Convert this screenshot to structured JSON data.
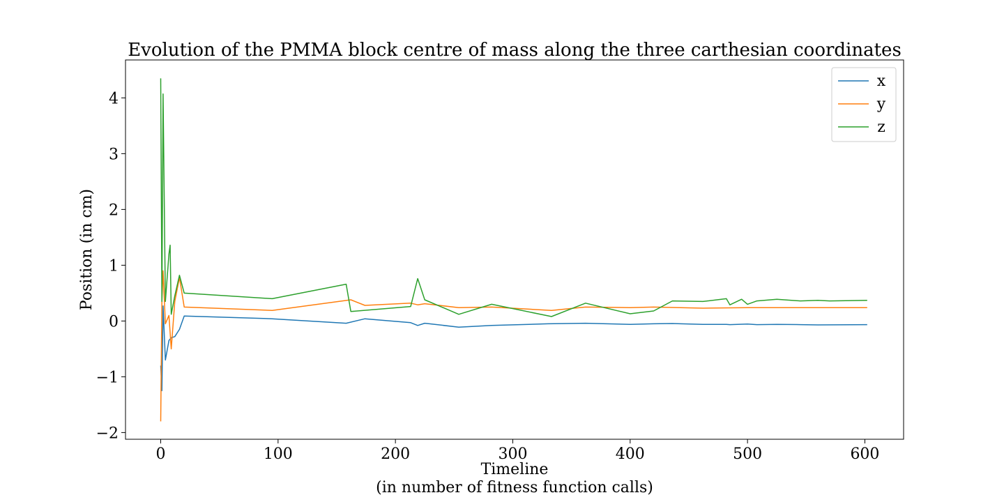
{
  "chart_data": {
    "type": "line",
    "title": "Evolution of the PMMA block centre of mass along the three carthesian coordinates",
    "xlabel": [
      "Timeline",
      "(in number of fitness function calls)"
    ],
    "ylabel": "Position (in cm)",
    "xlim": [
      -30,
      633
    ],
    "ylim": [
      -2.12,
      4.68
    ],
    "xticks": [
      0,
      100,
      200,
      300,
      400,
      500,
      600
    ],
    "xtick_labels": [
      "0",
      "100",
      "200",
      "300",
      "400",
      "500",
      "600"
    ],
    "yticks": [
      -2,
      -1,
      0,
      1,
      2,
      3,
      4
    ],
    "ytick_labels": [
      "−2",
      "−1",
      "0",
      "1",
      "2",
      "3",
      "4"
    ],
    "grid": false,
    "legend": "top-right",
    "series": [
      {
        "name": "x",
        "color": "#1f77b4",
        "points": [
          [
            0,
            -0.8
          ],
          [
            1,
            -1.25
          ],
          [
            2,
            0.27
          ],
          [
            4,
            -0.7
          ],
          [
            7,
            -0.35
          ],
          [
            9,
            -0.3
          ],
          [
            12,
            -0.28
          ],
          [
            16,
            -0.15
          ],
          [
            20,
            0.09
          ],
          [
            95,
            0.04
          ],
          [
            158,
            -0.04
          ],
          [
            174,
            0.04
          ],
          [
            213,
            -0.03
          ],
          [
            219,
            -0.08
          ],
          [
            225,
            -0.04
          ],
          [
            254,
            -0.11
          ],
          [
            282,
            -0.08
          ],
          [
            330,
            -0.05
          ],
          [
            362,
            -0.04
          ],
          [
            400,
            -0.06
          ],
          [
            420,
            -0.05
          ],
          [
            436,
            -0.045
          ],
          [
            443,
            -0.05
          ],
          [
            462,
            -0.06
          ],
          [
            482,
            -0.06
          ],
          [
            485,
            -0.065
          ],
          [
            500,
            -0.055
          ],
          [
            508,
            -0.065
          ],
          [
            525,
            -0.06
          ],
          [
            545,
            -0.065
          ],
          [
            560,
            -0.07
          ],
          [
            602,
            -0.065
          ]
        ]
      },
      {
        "name": "y",
        "color": "#ff7f0e",
        "points": [
          [
            0,
            -1.8
          ],
          [
            1,
            0.35
          ],
          [
            2,
            0.9
          ],
          [
            4,
            -0.05
          ],
          [
            7,
            0.1
          ],
          [
            9,
            -0.5
          ],
          [
            12,
            0.35
          ],
          [
            16,
            0.78
          ],
          [
            20,
            0.25
          ],
          [
            95,
            0.19
          ],
          [
            162,
            0.38
          ],
          [
            174,
            0.28
          ],
          [
            213,
            0.32
          ],
          [
            219,
            0.29
          ],
          [
            225,
            0.31
          ],
          [
            254,
            0.24
          ],
          [
            282,
            0.25
          ],
          [
            333,
            0.19
          ],
          [
            362,
            0.25
          ],
          [
            400,
            0.24
          ],
          [
            420,
            0.25
          ],
          [
            462,
            0.23
          ],
          [
            500,
            0.24
          ],
          [
            560,
            0.24
          ],
          [
            602,
            0.24
          ]
        ]
      },
      {
        "name": "z",
        "color": "#2ca02c",
        "points": [
          [
            0,
            4.35
          ],
          [
            1,
            0.35
          ],
          [
            2,
            4.07
          ],
          [
            4,
            0.35
          ],
          [
            7,
            1.2
          ],
          [
            8,
            1.36
          ],
          [
            9,
            0.12
          ],
          [
            12,
            0.45
          ],
          [
            16,
            0.82
          ],
          [
            20,
            0.5
          ],
          [
            95,
            0.4
          ],
          [
            158,
            0.66
          ],
          [
            162,
            0.17
          ],
          [
            213,
            0.26
          ],
          [
            219,
            0.76
          ],
          [
            225,
            0.38
          ],
          [
            254,
            0.12
          ],
          [
            282,
            0.3
          ],
          [
            333,
            0.08
          ],
          [
            362,
            0.32
          ],
          [
            400,
            0.13
          ],
          [
            420,
            0.18
          ],
          [
            436,
            0.36
          ],
          [
            462,
            0.35
          ],
          [
            482,
            0.4
          ],
          [
            485,
            0.29
          ],
          [
            495,
            0.39
          ],
          [
            500,
            0.3
          ],
          [
            508,
            0.36
          ],
          [
            525,
            0.39
          ],
          [
            545,
            0.36
          ],
          [
            560,
            0.37
          ],
          [
            570,
            0.36
          ],
          [
            602,
            0.37
          ]
        ]
      }
    ]
  }
}
